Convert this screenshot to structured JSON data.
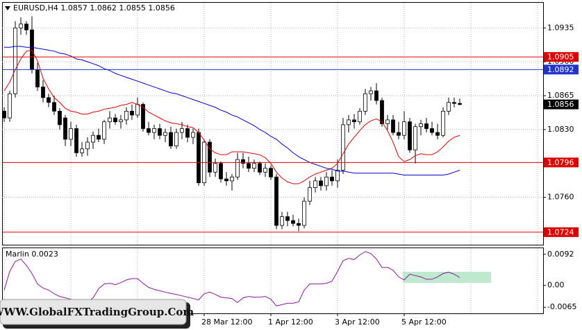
{
  "chart_data": [
    {
      "type": "candlestick",
      "title": "EURUSD,H4  1.0857 1.0862 1.0855 1.0856",
      "categories": [
        null,
        null,
        null,
        null,
        null,
        null,
        null,
        null,
        null,
        null,
        null,
        null,
        null,
        null,
        null,
        null,
        null,
        null,
        null,
        null,
        null,
        null,
        null,
        null,
        null,
        null,
        null,
        null,
        null,
        null,
        null,
        null,
        null,
        null,
        null,
        null,
        "28 Mar 12:00",
        null,
        null,
        null,
        null,
        null,
        null,
        null,
        null,
        null,
        null,
        null,
        "1 Apr 12:00",
        null,
        null,
        null,
        null,
        null,
        null,
        null,
        null,
        null,
        null,
        null,
        "3 Apr 12:00",
        null,
        null,
        null,
        null,
        null,
        null,
        null,
        null,
        null,
        null,
        null,
        "5 Apr 12:00",
        null,
        null,
        null,
        null,
        null,
        null,
        null,
        null,
        null,
        null
      ],
      "open": [
        1.0849,
        1.0842,
        1.0867,
        1.0935,
        1.0939,
        1.0933,
        1.0892,
        1.0874,
        1.0863,
        1.0858,
        1.0849,
        1.0842,
        1.082,
        1.0831,
        1.0806,
        1.081,
        1.0817,
        1.0824,
        1.082,
        1.0838,
        1.0842,
        1.0838,
        1.084,
        1.0849,
        1.0845,
        1.0856,
        1.0831,
        1.0827,
        1.0831,
        1.0824,
        1.0827,
        1.0813,
        1.0827,
        1.0831,
        1.0822,
        1.0827,
        1.0775,
        1.0817,
        1.0786,
        1.0795,
        1.0779,
        1.0777,
        1.0781,
        1.0799,
        1.0795,
        1.079,
        1.0795,
        1.0786,
        1.079,
        1.0781,
        1.0731,
        1.074,
        1.0736,
        1.0733,
        1.0731,
        1.0756,
        1.077,
        1.0777,
        1.0772,
        1.0781,
        1.0777,
        1.0788,
        1.0835,
        1.084,
        1.0838,
        1.0849,
        1.0867,
        1.087,
        1.086,
        1.0836,
        1.084,
        1.0827,
        1.0824,
        1.0838,
        1.0809,
        1.0833,
        1.0836,
        1.0831,
        1.0827,
        1.0824,
        1.0849,
        1.0858,
        1.0857
      ],
      "high": [
        1.0853,
        1.087,
        1.0942,
        1.0946,
        1.0942,
        1.0947,
        1.0899,
        1.0881,
        1.0867,
        1.0865,
        1.0852,
        1.0845,
        1.0838,
        1.0835,
        1.0817,
        1.0822,
        1.0828,
        1.0831,
        1.084,
        1.0849,
        1.0846,
        1.0845,
        1.0853,
        1.0856,
        1.0863,
        1.0858,
        1.0838,
        1.0835,
        1.0836,
        1.0831,
        1.0833,
        1.0831,
        1.0838,
        1.0835,
        1.0831,
        1.0831,
        1.082,
        1.082,
        1.08,
        1.0797,
        1.0786,
        1.0784,
        1.0806,
        1.0806,
        1.0802,
        1.0799,
        1.0797,
        1.0795,
        1.0793,
        1.0784,
        1.0745,
        1.0745,
        1.0742,
        1.0738,
        1.076,
        1.0777,
        1.0781,
        1.0781,
        1.0786,
        1.0788,
        1.0799,
        1.0842,
        1.0845,
        1.0846,
        1.0852,
        1.0872,
        1.0874,
        1.0878,
        1.0863,
        1.0845,
        1.0845,
        1.0838,
        1.0849,
        1.0842,
        1.0836,
        1.084,
        1.0842,
        1.0838,
        1.0836,
        1.0853,
        1.0863,
        1.0863,
        1.0862
      ],
      "low": [
        1.0838,
        1.0838,
        1.0863,
        1.0928,
        1.0928,
        1.0888,
        1.087,
        1.0858,
        1.0853,
        1.0845,
        1.083,
        1.0813,
        1.0813,
        1.0802,
        1.0802,
        1.0803,
        1.081,
        1.0817,
        1.0815,
        1.0831,
        1.0835,
        1.0831,
        1.0835,
        1.084,
        1.0842,
        1.0828,
        1.0824,
        1.082,
        1.082,
        1.0817,
        1.081,
        1.081,
        1.082,
        1.0817,
        1.0815,
        1.0772,
        1.0772,
        1.0781,
        1.0781,
        1.0775,
        1.0772,
        1.0767,
        1.0778,
        1.079,
        1.0786,
        1.0786,
        1.0783,
        1.0781,
        1.0778,
        1.0727,
        1.0727,
        1.073,
        1.073,
        1.0725,
        1.0728,
        1.0752,
        1.0765,
        1.0767,
        1.0767,
        1.0772,
        1.077,
        1.0784,
        1.0827,
        1.0831,
        1.0835,
        1.0845,
        1.086,
        1.0856,
        1.0833,
        1.083,
        1.0824,
        1.082,
        1.082,
        1.0806,
        1.0795,
        1.0824,
        1.0827,
        1.0824,
        1.082,
        1.0822,
        1.0845,
        1.0853,
        1.0855
      ],
      "close": [
        1.0842,
        1.0867,
        1.0935,
        1.0939,
        1.0933,
        1.0892,
        1.0874,
        1.0863,
        1.0858,
        1.0849,
        1.0835,
        1.082,
        1.0831,
        1.0806,
        1.081,
        1.0817,
        1.0824,
        1.082,
        1.0838,
        1.0842,
        1.0838,
        1.084,
        1.0849,
        1.0845,
        1.0856,
        1.0831,
        1.0827,
        1.0831,
        1.0824,
        1.0827,
        1.0813,
        1.0827,
        1.0831,
        1.0822,
        1.0827,
        1.0775,
        1.0817,
        1.0786,
        1.0795,
        1.0779,
        1.0777,
        1.0781,
        1.0799,
        1.0795,
        1.079,
        1.0795,
        1.0786,
        1.079,
        1.0781,
        1.0731,
        1.074,
        1.0736,
        1.0733,
        1.0731,
        1.0756,
        1.077,
        1.0777,
        1.0772,
        1.0781,
        1.0777,
        1.0788,
        1.0835,
        1.084,
        1.0838,
        1.0849,
        1.0867,
        1.087,
        1.086,
        1.0836,
        1.084,
        1.0827,
        1.0824,
        1.0838,
        1.0809,
        1.0833,
        1.0836,
        1.0831,
        1.0827,
        1.0824,
        1.0849,
        1.0858,
        1.0857,
        1.0856
      ],
      "up_color": "#ffffff",
      "down_color": "#000000",
      "lines": [
        {
          "color": "#dd0000",
          "values": [
            1.087,
            1.0879,
            1.0892,
            1.0903,
            1.0911,
            1.0912,
            1.0901,
            1.0883,
            1.0872,
            1.0863,
            1.0858,
            1.0852,
            1.0849,
            1.0848,
            1.0846,
            1.0846,
            1.0848,
            1.0849,
            1.0851,
            1.0852,
            1.0853,
            1.0855,
            1.0856,
            1.0858,
            1.0856,
            1.0853,
            1.0848,
            1.0845,
            1.0842,
            1.0839,
            1.0837,
            1.0836,
            1.0835,
            1.0833,
            1.0832,
            1.0827,
            1.0819,
            1.081,
            1.0806,
            1.0804,
            1.0804,
            1.0807,
            1.0807,
            1.0807,
            1.0806,
            1.0805,
            1.0804,
            1.0801,
            1.0795,
            1.0786,
            1.078,
            1.0776,
            1.0774,
            1.0774,
            1.0777,
            1.0781,
            1.0784,
            1.0786,
            1.0788,
            1.079,
            1.0795,
            1.0805,
            1.0815,
            1.0822,
            1.0829,
            1.0835,
            1.0839,
            1.0841,
            1.0838,
            1.0829,
            1.0817,
            1.0802,
            1.0797,
            1.0799,
            1.0803,
            1.0805,
            1.0804,
            1.0804,
            1.0807,
            1.0812,
            1.0818,
            1.0822,
            1.0824
          ]
        },
        {
          "color": "#0000cc",
          "values": [
            1.0915,
            1.0915,
            1.0916,
            1.0916,
            1.0915,
            1.0915,
            1.0914,
            1.0913,
            1.0912,
            1.0911,
            1.0909,
            1.0908,
            1.0906,
            1.0903,
            1.0902,
            1.09,
            1.0898,
            1.0896,
            1.0893,
            1.0891,
            1.0888,
            1.0886,
            1.0884,
            1.0882,
            1.088,
            1.0878,
            1.0876,
            1.0874,
            1.0872,
            1.087,
            1.0868,
            1.0867,
            1.0865,
            1.0863,
            1.0861,
            1.0859,
            1.0857,
            1.0855,
            1.0853,
            1.085,
            1.0848,
            1.0845,
            1.0843,
            1.084,
            1.0837,
            1.0834,
            1.083,
            1.0827,
            1.0823,
            1.082,
            1.0815,
            1.0811,
            1.0806,
            1.0802,
            1.0799,
            1.0796,
            1.0794,
            1.0792,
            1.079,
            1.0789,
            1.0787,
            1.0787,
            1.0786,
            1.0785,
            1.0785,
            1.0785,
            1.0785,
            1.0785,
            1.0785,
            1.0785,
            1.0785,
            1.0784,
            1.0783,
            1.0783,
            1.0783,
            1.0783,
            1.0783,
            1.0783,
            1.0783,
            1.0783,
            1.0784,
            1.0786,
            1.0788
          ]
        }
      ],
      "levels": [
        {
          "value": 1.0905,
          "color": "#dd0000"
        },
        {
          "value": 1.0892,
          "color": "#2233cc"
        },
        {
          "value": 1.0796,
          "color": "#dd0000"
        },
        {
          "value": 1.0724,
          "color": "#dd0000"
        }
      ],
      "price_label": 1.0856,
      "ylim": [
        1.0711,
        1.0961
      ],
      "yticks": [
        1.0935,
        {
          "value": 1.09,
          "label": "1.0900"
        },
        1.0865,
        {
          "value": 1.083,
          "label": "1.0830"
        },
        {
          "value": 1.076,
          "label": "1.0760"
        }
      ],
      "grid": true
    },
    {
      "type": "line",
      "title": "Marlin 0.0023",
      "color": "#8a1a9a",
      "values": [
        -0.0014,
        0.0041,
        0.0071,
        0.0078,
        0.0059,
        0.0035,
        0.0004,
        -0.0008,
        -0.0014,
        -0.0025,
        -0.0033,
        -0.0037,
        -0.0041,
        -0.0047,
        -0.0053,
        -0.0049,
        -0.0037,
        -0.001,
        0.0004,
        0.0006,
        0.0002,
        0.0008,
        0.0016,
        0.002,
        0.002,
        0.0006,
        -0.0006,
        -0.0012,
        -0.0016,
        -0.002,
        -0.0024,
        -0.0027,
        -0.0031,
        -0.0035,
        -0.0039,
        -0.0043,
        -0.0025,
        -0.002,
        -0.0027,
        -0.0035,
        -0.0037,
        -0.0039,
        -0.0051,
        -0.0037,
        -0.0033,
        -0.0035,
        -0.0035,
        -0.0033,
        -0.0041,
        -0.0061,
        -0.0057,
        -0.0053,
        -0.0053,
        -0.0049,
        -0.0014,
        0.0004,
        0.0004,
        0.0004,
        0.0006,
        0.0012,
        0.0041,
        0.0073,
        0.008,
        0.0076,
        0.009,
        0.01,
        0.0094,
        0.0078,
        0.0053,
        0.0053,
        0.0045,
        0.0025,
        0.0016,
        0.0033,
        0.0029,
        0.0025,
        0.0018,
        0.0018,
        0.0025,
        0.0035,
        0.0039,
        0.0033,
        0.0023
      ],
      "ylim": [
        -0.0083,
        0.011
      ],
      "yticks": [
        0.0092,
        {
          "value": 0,
          "label": "0.00"
        },
        -0.0065
      ]
    }
  ],
  "watermark": "WWW.GlobalFXTradingGroup.Com"
}
